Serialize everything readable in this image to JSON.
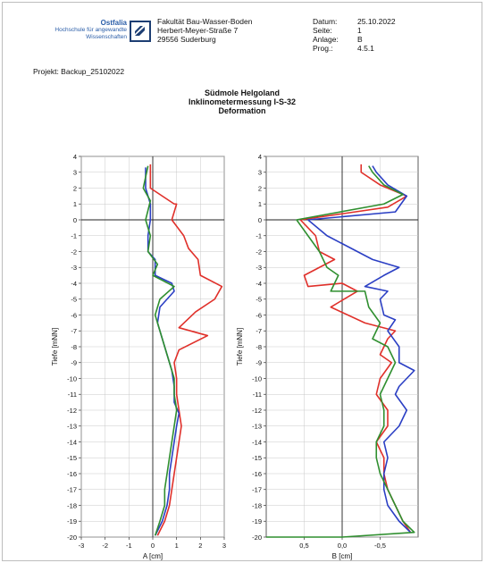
{
  "header": {
    "logo": {
      "name": "Ostfalia",
      "line1": "Hochschule für angewandte",
      "line2": "Wissenschaften",
      "icon": "ostfalia-logo-icon"
    },
    "address": [
      "Fakultät Bau-Wasser-Boden",
      "Herbert-Meyer-Straße 7",
      "29556 Suderburg"
    ],
    "meta_labels": [
      "Datum:",
      "Seite:",
      "Anlage:",
      "Prog.:"
    ],
    "meta_values": [
      "25.10.2022",
      "1",
      "B",
      "4.5.1"
    ]
  },
  "project": "Projekt: Backup_25102022",
  "title": [
    "Südmole Helgoland",
    "Inklinometermessung I-S-32",
    "Deformation"
  ],
  "colors": {
    "red": "#e0302a",
    "green": "#2f8f2f",
    "blue": "#2b3fc4",
    "navy": "#1d3e73"
  },
  "chart_data": [
    {
      "type": "line",
      "xlabel": "A [cm]",
      "ylabel": "Tiefe [mNN]",
      "xlim": [
        -3,
        3
      ],
      "ylim": [
        -20,
        4
      ],
      "xticks": [
        -3,
        -2,
        -1,
        0,
        1,
        2,
        3
      ],
      "xtick_labels": [
        "-3",
        "-2",
        "-1",
        "0",
        "1",
        "2",
        "3"
      ],
      "yticks": [
        -20,
        -19,
        -18,
        -17,
        -16,
        -15,
        -14,
        -13,
        -12,
        -11,
        -10,
        -9,
        -8,
        -7,
        -6,
        -5,
        -4,
        -3,
        -2,
        -1,
        0,
        1,
        2,
        3,
        4
      ],
      "grid": true,
      "series": [
        {
          "color": "red",
          "points": [
            [
              -0.1,
              3.5
            ],
            [
              -0.1,
              2.0
            ],
            [
              0.9,
              1.0
            ],
            [
              1.0,
              1.0
            ],
            [
              0.8,
              0.0
            ],
            [
              1.3,
              -1.0
            ],
            [
              1.5,
              -1.8
            ],
            [
              1.9,
              -2.5
            ],
            [
              2.0,
              -3.5
            ],
            [
              2.9,
              -4.2
            ],
            [
              2.6,
              -5.0
            ],
            [
              1.8,
              -5.8
            ],
            [
              1.1,
              -6.8
            ],
            [
              2.3,
              -7.3
            ],
            [
              1.1,
              -8.2
            ],
            [
              0.9,
              -9.0
            ],
            [
              1.0,
              -10.0
            ],
            [
              1.0,
              -11.0
            ],
            [
              1.1,
              -12.0
            ],
            [
              1.2,
              -13.0
            ],
            [
              1.1,
              -14.0
            ],
            [
              1.0,
              -15.0
            ],
            [
              0.9,
              -16.0
            ],
            [
              0.8,
              -17.0
            ],
            [
              0.7,
              -18.0
            ],
            [
              0.5,
              -19.0
            ],
            [
              0.2,
              -19.9
            ]
          ]
        },
        {
          "color": "blue",
          "points": [
            [
              -0.3,
              3.3
            ],
            [
              -0.3,
              2.0
            ],
            [
              -0.1,
              1.0
            ],
            [
              -0.1,
              0.0
            ],
            [
              -0.2,
              -1.0
            ],
            [
              -0.2,
              -2.0
            ],
            [
              0.1,
              -2.5
            ],
            [
              0.1,
              -3.5
            ],
            [
              0.8,
              -4.0
            ],
            [
              0.9,
              -4.5
            ],
            [
              0.3,
              -5.5
            ],
            [
              0.2,
              -6.5
            ],
            [
              0.4,
              -7.5
            ],
            [
              0.6,
              -8.5
            ],
            [
              0.8,
              -9.5
            ],
            [
              0.9,
              -10.5
            ],
            [
              0.9,
              -11.5
            ],
            [
              1.1,
              -12.2
            ],
            [
              1.0,
              -13.0
            ],
            [
              0.9,
              -14.0
            ],
            [
              0.8,
              -15.0
            ],
            [
              0.7,
              -16.0
            ],
            [
              0.7,
              -17.0
            ],
            [
              0.6,
              -18.0
            ],
            [
              0.4,
              -19.0
            ],
            [
              0.1,
              -19.9
            ]
          ]
        },
        {
          "color": "green",
          "points": [
            [
              -0.2,
              3.4
            ],
            [
              -0.4,
              2.0
            ],
            [
              -0.1,
              1.2
            ],
            [
              -0.3,
              0.0
            ],
            [
              -0.1,
              -1.0
            ],
            [
              -0.2,
              -2.0
            ],
            [
              0.2,
              -2.8
            ],
            [
              0.0,
              -3.5
            ],
            [
              0.9,
              -4.2
            ],
            [
              0.3,
              -5.0
            ],
            [
              0.1,
              -6.0
            ],
            [
              0.3,
              -7.0
            ],
            [
              0.5,
              -8.0
            ],
            [
              0.7,
              -9.0
            ],
            [
              0.9,
              -10.0
            ],
            [
              0.9,
              -11.0
            ],
            [
              1.0,
              -12.0
            ],
            [
              0.9,
              -13.0
            ],
            [
              0.8,
              -14.0
            ],
            [
              0.7,
              -15.0
            ],
            [
              0.6,
              -16.0
            ],
            [
              0.5,
              -17.0
            ],
            [
              0.5,
              -18.0
            ],
            [
              0.3,
              -19.0
            ],
            [
              0.1,
              -19.9
            ]
          ]
        }
      ]
    },
    {
      "type": "line",
      "xlabel": "B [cm]",
      "ylabel": "Tiefe [mNN]",
      "xlim": [
        1.0,
        -1.0
      ],
      "ylim": [
        -20,
        4
      ],
      "xticks": [
        0.5,
        0.0,
        -0.5
      ],
      "xtick_labels": [
        "0,5",
        "0,0",
        "-0,5"
      ],
      "yticks": [
        -20,
        -19,
        -18,
        -17,
        -16,
        -15,
        -14,
        -13,
        -12,
        -11,
        -10,
        -9,
        -8,
        -7,
        -6,
        -5,
        -4,
        -3,
        -2,
        -1,
        0,
        1,
        2,
        3,
        4
      ],
      "grid": true,
      "series": [
        {
          "color": "red",
          "points": [
            [
              -0.25,
              3.5
            ],
            [
              -0.25,
              3.0
            ],
            [
              -0.5,
              2.2
            ],
            [
              -0.85,
              1.5
            ],
            [
              -0.6,
              0.8
            ],
            [
              0.55,
              0.0
            ],
            [
              0.35,
              -1.0
            ],
            [
              0.3,
              -2.0
            ],
            [
              0.1,
              -2.5
            ],
            [
              0.5,
              -3.5
            ],
            [
              0.45,
              -4.2
            ],
            [
              0.0,
              -4.0
            ],
            [
              -0.2,
              -4.5
            ],
            [
              0.15,
              -5.5
            ],
            [
              -0.3,
              -6.5
            ],
            [
              -0.7,
              -7.0
            ],
            [
              -0.6,
              -7.5
            ],
            [
              -0.5,
              -8.5
            ],
            [
              -0.65,
              -9.0
            ],
            [
              -0.5,
              -10.0
            ],
            [
              -0.45,
              -11.0
            ],
            [
              -0.6,
              -12.0
            ],
            [
              -0.6,
              -13.0
            ],
            [
              -0.45,
              -14.0
            ],
            [
              -0.55,
              -15.0
            ],
            [
              -0.55,
              -16.0
            ],
            [
              -0.6,
              -17.0
            ],
            [
              -0.7,
              -18.0
            ],
            [
              -0.8,
              -19.0
            ],
            [
              -0.9,
              -19.7
            ]
          ]
        },
        {
          "color": "blue",
          "points": [
            [
              -0.4,
              3.4
            ],
            [
              -0.45,
              3.0
            ],
            [
              -0.6,
              2.2
            ],
            [
              -0.85,
              1.5
            ],
            [
              -0.7,
              0.5
            ],
            [
              0.45,
              0.0
            ],
            [
              0.2,
              -1.0
            ],
            [
              -0.2,
              -2.0
            ],
            [
              -0.4,
              -2.5
            ],
            [
              -0.75,
              -3.0
            ],
            [
              -0.55,
              -3.5
            ],
            [
              -0.3,
              -4.2
            ],
            [
              -0.6,
              -4.5
            ],
            [
              -0.5,
              -5.0
            ],
            [
              -0.55,
              -6.0
            ],
            [
              -0.7,
              -6.3
            ],
            [
              -0.6,
              -7.0
            ],
            [
              -0.75,
              -8.0
            ],
            [
              -0.75,
              -9.0
            ],
            [
              -0.95,
              -9.5
            ],
            [
              -0.75,
              -10.5
            ],
            [
              -0.7,
              -11.0
            ],
            [
              -0.85,
              -12.0
            ],
            [
              -0.75,
              -13.0
            ],
            [
              -0.55,
              -14.0
            ],
            [
              -0.6,
              -15.0
            ],
            [
              -0.55,
              -16.0
            ],
            [
              -0.55,
              -17.0
            ],
            [
              -0.6,
              -18.0
            ],
            [
              -0.75,
              -19.0
            ],
            [
              -0.9,
              -19.7
            ]
          ]
        },
        {
          "color": "green",
          "points": [
            [
              -0.35,
              3.4
            ],
            [
              -0.4,
              3.0
            ],
            [
              -0.55,
              2.2
            ],
            [
              -0.8,
              1.6
            ],
            [
              -0.55,
              1.0
            ],
            [
              0.6,
              0.0
            ],
            [
              0.45,
              -1.0
            ],
            [
              0.3,
              -2.0
            ],
            [
              0.2,
              -3.0
            ],
            [
              0.05,
              -3.5
            ],
            [
              0.15,
              -4.5
            ],
            [
              -0.3,
              -4.5
            ],
            [
              -0.35,
              -5.5
            ],
            [
              -0.5,
              -6.5
            ],
            [
              -0.4,
              -7.5
            ],
            [
              -0.6,
              -8.0
            ],
            [
              -0.7,
              -9.0
            ],
            [
              -0.6,
              -10.0
            ],
            [
              -0.5,
              -11.0
            ],
            [
              -0.55,
              -12.0
            ],
            [
              -0.55,
              -13.0
            ],
            [
              -0.45,
              -14.0
            ],
            [
              -0.45,
              -15.0
            ],
            [
              -0.5,
              -16.0
            ],
            [
              -0.6,
              -17.0
            ],
            [
              -0.7,
              -18.0
            ],
            [
              -0.8,
              -19.0
            ],
            [
              -0.95,
              -19.7
            ],
            [
              0.0,
              -20.0
            ],
            [
              1.0,
              -20.0
            ]
          ]
        }
      ]
    }
  ]
}
